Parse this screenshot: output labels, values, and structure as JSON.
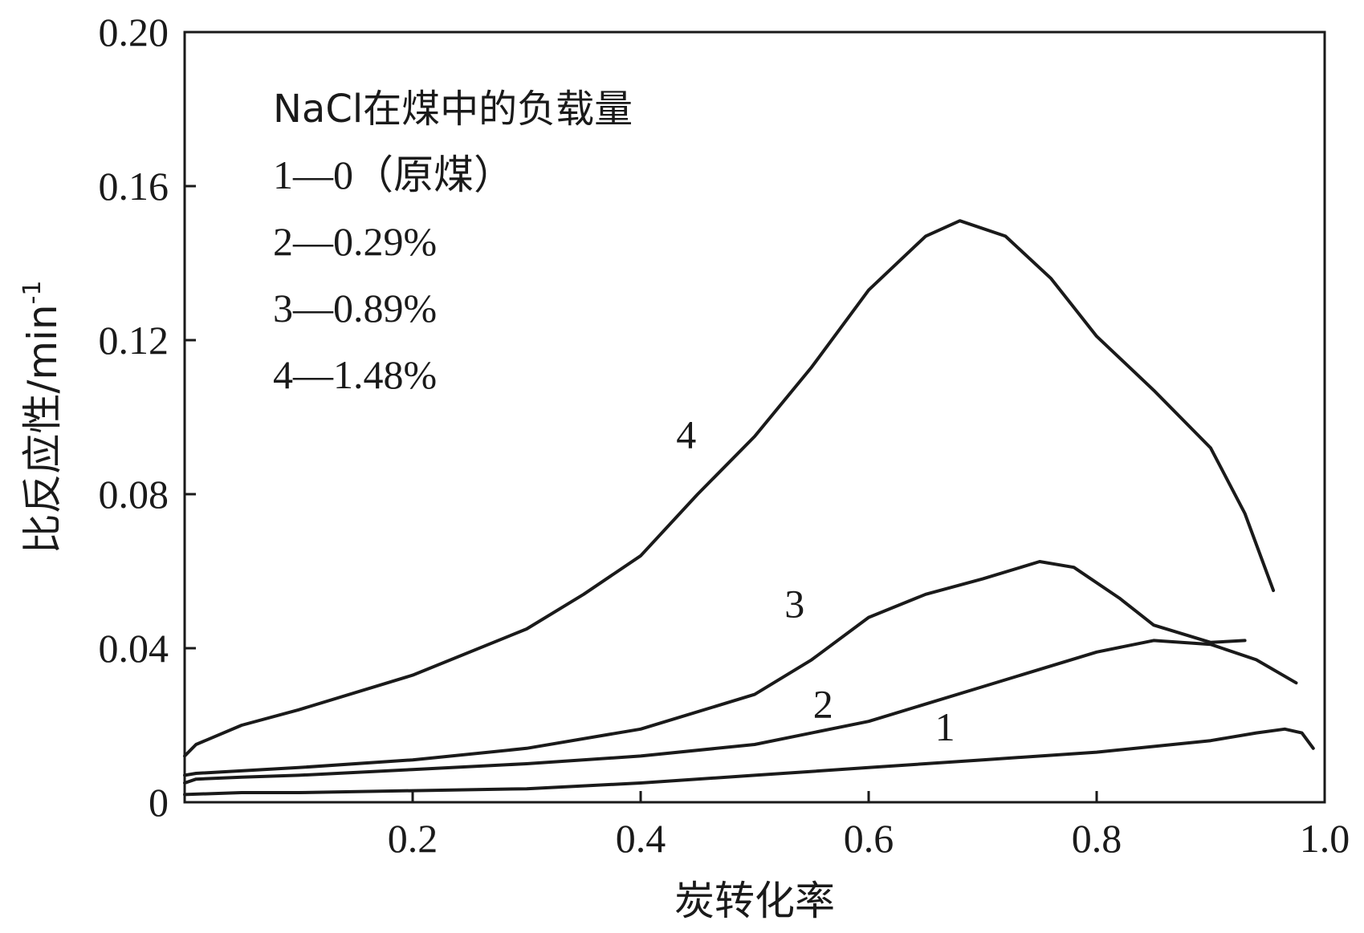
{
  "chart_data": {
    "type": "line",
    "title": "",
    "xlabel": "炭转化率",
    "ylabel": "比反应性/min",
    "ylabel_superscript": "-1",
    "xlim": [
      0,
      1.0
    ],
    "ylim": [
      0,
      0.2
    ],
    "x_ticks": [
      0.2,
      0.4,
      0.6,
      0.8,
      1.0
    ],
    "x_tick_labels": [
      "0.2",
      "0.4",
      "0.6",
      "0.8",
      "1.0"
    ],
    "y_ticks": [
      0,
      0.04,
      0.08,
      0.12,
      0.16,
      0.2
    ],
    "y_tick_labels": [
      "0",
      "0.04",
      "0.08",
      "0.12",
      "0.16",
      "0.20"
    ],
    "grid": false,
    "legend": {
      "placement": "top-left",
      "title": "NaCl在煤中的负载量",
      "entries": [
        "1—0（原煤）",
        "2—0.29%",
        "3—0.89%",
        "4—1.48%"
      ]
    },
    "series": [
      {
        "name": "1",
        "label_pos": [
          0.667,
          0.016
        ],
        "points": [
          [
            0.0,
            0.002
          ],
          [
            0.05,
            0.0025
          ],
          [
            0.1,
            0.0025
          ],
          [
            0.2,
            0.003
          ],
          [
            0.3,
            0.0035
          ],
          [
            0.4,
            0.005
          ],
          [
            0.5,
            0.007
          ],
          [
            0.6,
            0.009
          ],
          [
            0.7,
            0.011
          ],
          [
            0.8,
            0.013
          ],
          [
            0.9,
            0.016
          ],
          [
            0.94,
            0.018
          ],
          [
            0.965,
            0.019
          ],
          [
            0.98,
            0.018
          ],
          [
            0.99,
            0.014
          ]
        ]
      },
      {
        "name": "2",
        "label_pos": [
          0.56,
          0.022
        ],
        "points": [
          [
            0.0,
            0.005
          ],
          [
            0.01,
            0.006
          ],
          [
            0.05,
            0.0065
          ],
          [
            0.1,
            0.007
          ],
          [
            0.2,
            0.0085
          ],
          [
            0.3,
            0.01
          ],
          [
            0.4,
            0.012
          ],
          [
            0.5,
            0.015
          ],
          [
            0.6,
            0.021
          ],
          [
            0.7,
            0.03
          ],
          [
            0.8,
            0.039
          ],
          [
            0.85,
            0.042
          ],
          [
            0.9,
            0.041
          ],
          [
            0.94,
            0.037
          ],
          [
            0.975,
            0.031
          ]
        ]
      },
      {
        "name": "3",
        "label_pos": [
          0.535,
          0.048
        ],
        "points": [
          [
            0.0,
            0.007
          ],
          [
            0.01,
            0.0075
          ],
          [
            0.1,
            0.009
          ],
          [
            0.2,
            0.011
          ],
          [
            0.3,
            0.014
          ],
          [
            0.4,
            0.019
          ],
          [
            0.5,
            0.028
          ],
          [
            0.55,
            0.037
          ],
          [
            0.6,
            0.048
          ],
          [
            0.65,
            0.054
          ],
          [
            0.7,
            0.058
          ],
          [
            0.75,
            0.0625
          ],
          [
            0.78,
            0.061
          ],
          [
            0.82,
            0.053
          ],
          [
            0.85,
            0.046
          ],
          [
            0.9,
            0.0415
          ],
          [
            0.93,
            0.042
          ]
        ]
      },
      {
        "name": "4",
        "label_pos": [
          0.44,
          0.092
        ],
        "points": [
          [
            0.0,
            0.012
          ],
          [
            0.01,
            0.015
          ],
          [
            0.05,
            0.02
          ],
          [
            0.1,
            0.024
          ],
          [
            0.2,
            0.033
          ],
          [
            0.3,
            0.045
          ],
          [
            0.35,
            0.054
          ],
          [
            0.4,
            0.064
          ],
          [
            0.45,
            0.08
          ],
          [
            0.5,
            0.095
          ],
          [
            0.55,
            0.113
          ],
          [
            0.6,
            0.133
          ],
          [
            0.65,
            0.147
          ],
          [
            0.68,
            0.151
          ],
          [
            0.72,
            0.147
          ],
          [
            0.76,
            0.136
          ],
          [
            0.8,
            0.121
          ],
          [
            0.85,
            0.107
          ],
          [
            0.9,
            0.092
          ],
          [
            0.93,
            0.075
          ],
          [
            0.955,
            0.055
          ]
        ]
      }
    ]
  }
}
